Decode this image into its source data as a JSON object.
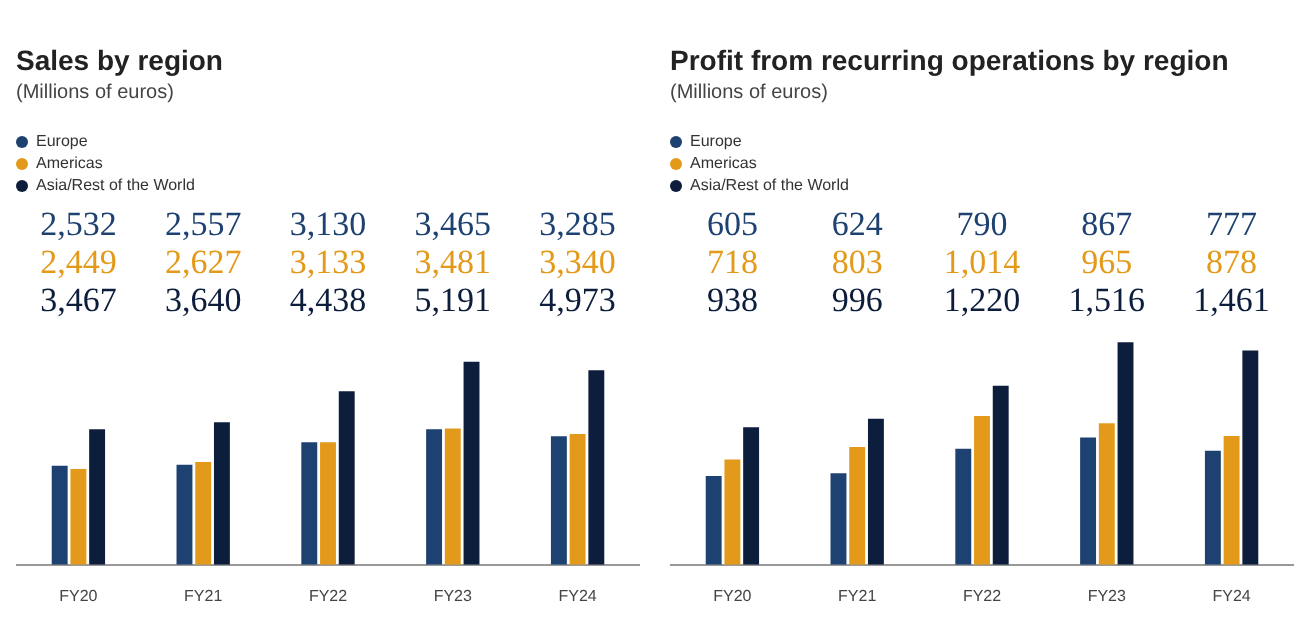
{
  "chart_data": [
    {
      "type": "bar",
      "title": "Sales by region",
      "subtitle": "(Millions of euros)",
      "categories": [
        "FY20",
        "FY21",
        "FY22",
        "FY23",
        "FY24"
      ],
      "legend": "top left",
      "series": [
        {
          "name": "Europe",
          "color": "#1d4170",
          "values": [
            2532,
            2557,
            3130,
            3465,
            3285
          ],
          "value_labels": [
            "2,532",
            "2,557",
            "3,130",
            "3,465",
            "3,285"
          ]
        },
        {
          "name": "Americas",
          "color": "#e39a1a",
          "values": [
            2449,
            2627,
            3133,
            3481,
            3340
          ],
          "value_labels": [
            "2,449",
            "2,627",
            "3,133",
            "3,481",
            "3,340"
          ]
        },
        {
          "name": "Asia/Rest of the World",
          "color": "#0d1e3c",
          "values": [
            3467,
            3640,
            4438,
            5191,
            4973
          ],
          "value_labels": [
            "3,467",
            "3,640",
            "4,438",
            "5,191",
            "4,973"
          ]
        }
      ]
    },
    {
      "type": "bar",
      "title": "Profit from recurring operations by region",
      "subtitle": "(Millions of euros)",
      "categories": [
        "FY20",
        "FY21",
        "FY22",
        "FY23",
        "FY24"
      ],
      "legend": "top left",
      "series": [
        {
          "name": "Europe",
          "color": "#1d4170",
          "values": [
            605,
            624,
            790,
            867,
            777
          ],
          "value_labels": [
            "605",
            "624",
            "790",
            "867",
            "777"
          ]
        },
        {
          "name": "Americas",
          "color": "#e39a1a",
          "values": [
            718,
            803,
            1014,
            965,
            878
          ],
          "value_labels": [
            "718",
            "803",
            "1,014",
            "965",
            "878"
          ]
        },
        {
          "name": "Asia/Rest of the World",
          "color": "#0d1e3c",
          "values": [
            938,
            996,
            1220,
            1516,
            1461
          ],
          "value_labels": [
            "938",
            "996",
            "1,220",
            "1,516",
            "1,461"
          ]
        }
      ]
    }
  ]
}
